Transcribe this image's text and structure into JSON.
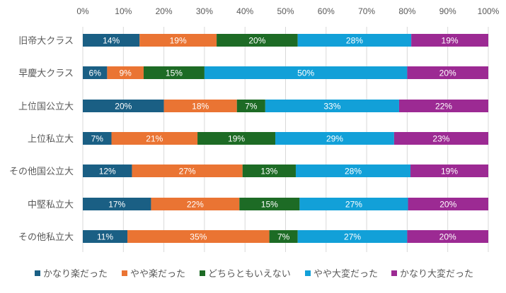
{
  "chart_data": {
    "type": "bar",
    "orientation": "horizontal",
    "stacked": "percent",
    "categories": [
      "旧帝大クラス",
      "早慶大クラス",
      "上位国公立大",
      "上位私立大",
      "その他国公立大",
      "中堅私立大",
      "その他私立大"
    ],
    "series": [
      {
        "name": "かなり楽だった",
        "color": "#1a5f84",
        "values": [
          14,
          6,
          20,
          7,
          12,
          17,
          11
        ]
      },
      {
        "name": "やや楽だった",
        "color": "#ea7433",
        "values": [
          19,
          9,
          18,
          21,
          27,
          22,
          35
        ]
      },
      {
        "name": "どちらともいえない",
        "color": "#1d6b25",
        "values": [
          20,
          15,
          7,
          19,
          13,
          15,
          7
        ]
      },
      {
        "name": "やや大変だった",
        "color": "#12a0d8",
        "values": [
          28,
          50,
          33,
          29,
          28,
          27,
          27
        ]
      },
      {
        "name": "かなり大変だった",
        "color": "#9c2a93",
        "values": [
          19,
          20,
          22,
          23,
          19,
          20,
          20
        ]
      }
    ],
    "xticks": [
      "0%",
      "10%",
      "20%",
      "30%",
      "40%",
      "50%",
      "60%",
      "70%",
      "80%",
      "90%",
      "100%"
    ],
    "xlim": [
      0,
      100
    ],
    "grid": true,
    "legend": "bottom",
    "data_label_suffix": "%"
  }
}
